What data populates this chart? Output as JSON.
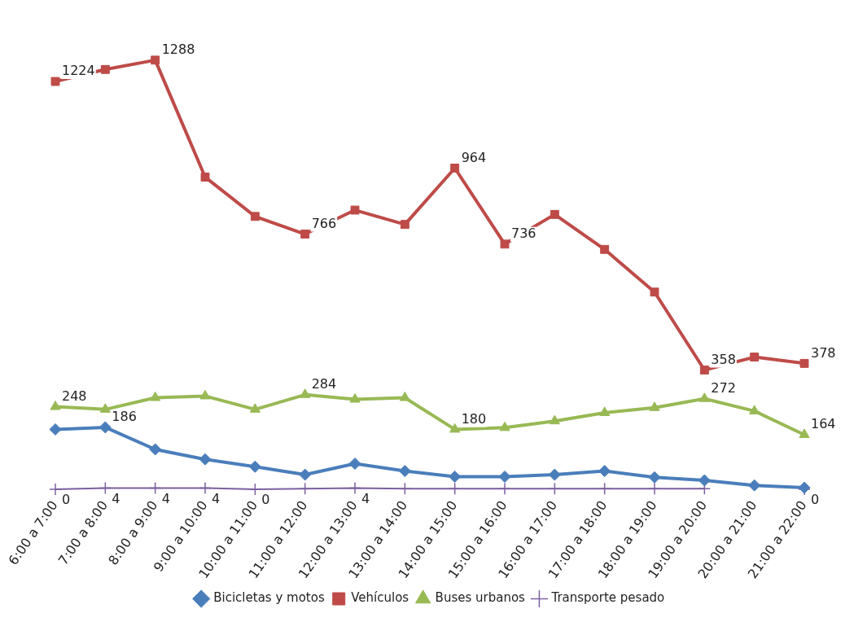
{
  "chart_data": {
    "type": "line",
    "categories": [
      "6:00 a 7:00",
      "7:00 a 8:00",
      "8:00 a 9:00",
      "9:00 a 10:00",
      "10:00 a 11:00",
      "11:00 a 12:00",
      "12:00 a 13:00",
      "13:00 a 14:00",
      "14:00 a 15:00",
      "15:00 a 16:00",
      "16:00 a 17:00",
      "17:00 a 18:00",
      "18:00 a 19:00",
      "19:00 a 20:00",
      "20:00 a 21:00",
      "21:00 a 22:00"
    ],
    "series": [
      {
        "name": "Bicicletas y motos",
        "color": "#4a7ebb",
        "marker": "diamond",
        "values": [
          180,
          186,
          120,
          90,
          68,
          44,
          77,
          55,
          38,
          38,
          44,
          55,
          36,
          27,
          12,
          5
        ],
        "value_labels": [
          null,
          "186",
          null,
          null,
          null,
          null,
          null,
          null,
          null,
          null,
          null,
          null,
          null,
          null,
          null,
          null
        ]
      },
      {
        "name": "Vehículos",
        "color": "#be4b48",
        "marker": "square",
        "values": [
          1224,
          1260,
          1288,
          937,
          819,
          766,
          838,
          795,
          964,
          736,
          825,
          720,
          592,
          358,
          397,
          378
        ],
        "value_labels": [
          "1224",
          null,
          "1288",
          null,
          null,
          "766",
          null,
          null,
          "964",
          "736",
          null,
          null,
          null,
          "358",
          null,
          "378"
        ]
      },
      {
        "name": "Buses urbanos",
        "color": "#98b954",
        "marker": "triangle",
        "values": [
          248,
          240,
          275,
          280,
          240,
          284,
          270,
          275,
          180,
          185,
          205,
          230,
          245,
          272,
          235,
          164
        ],
        "value_labels": [
          "248",
          null,
          null,
          null,
          null,
          "284",
          null,
          null,
          "180",
          null,
          null,
          null,
          null,
          "272",
          null,
          "164"
        ]
      },
      {
        "name": "Transporte pesado",
        "color": "#7d60a0",
        "marker": "cross",
        "values": [
          0,
          4,
          4,
          4,
          0,
          2,
          4,
          2,
          2,
          2,
          2,
          2,
          2,
          2,
          null,
          0
        ],
        "value_labels": [
          "0",
          "4",
          "4",
          "4",
          "0",
          null,
          "4",
          null,
          null,
          null,
          null,
          null,
          null,
          null,
          null,
          "0"
        ]
      }
    ],
    "tick_labels": "x",
    "grid": false,
    "legend": "bottom"
  }
}
